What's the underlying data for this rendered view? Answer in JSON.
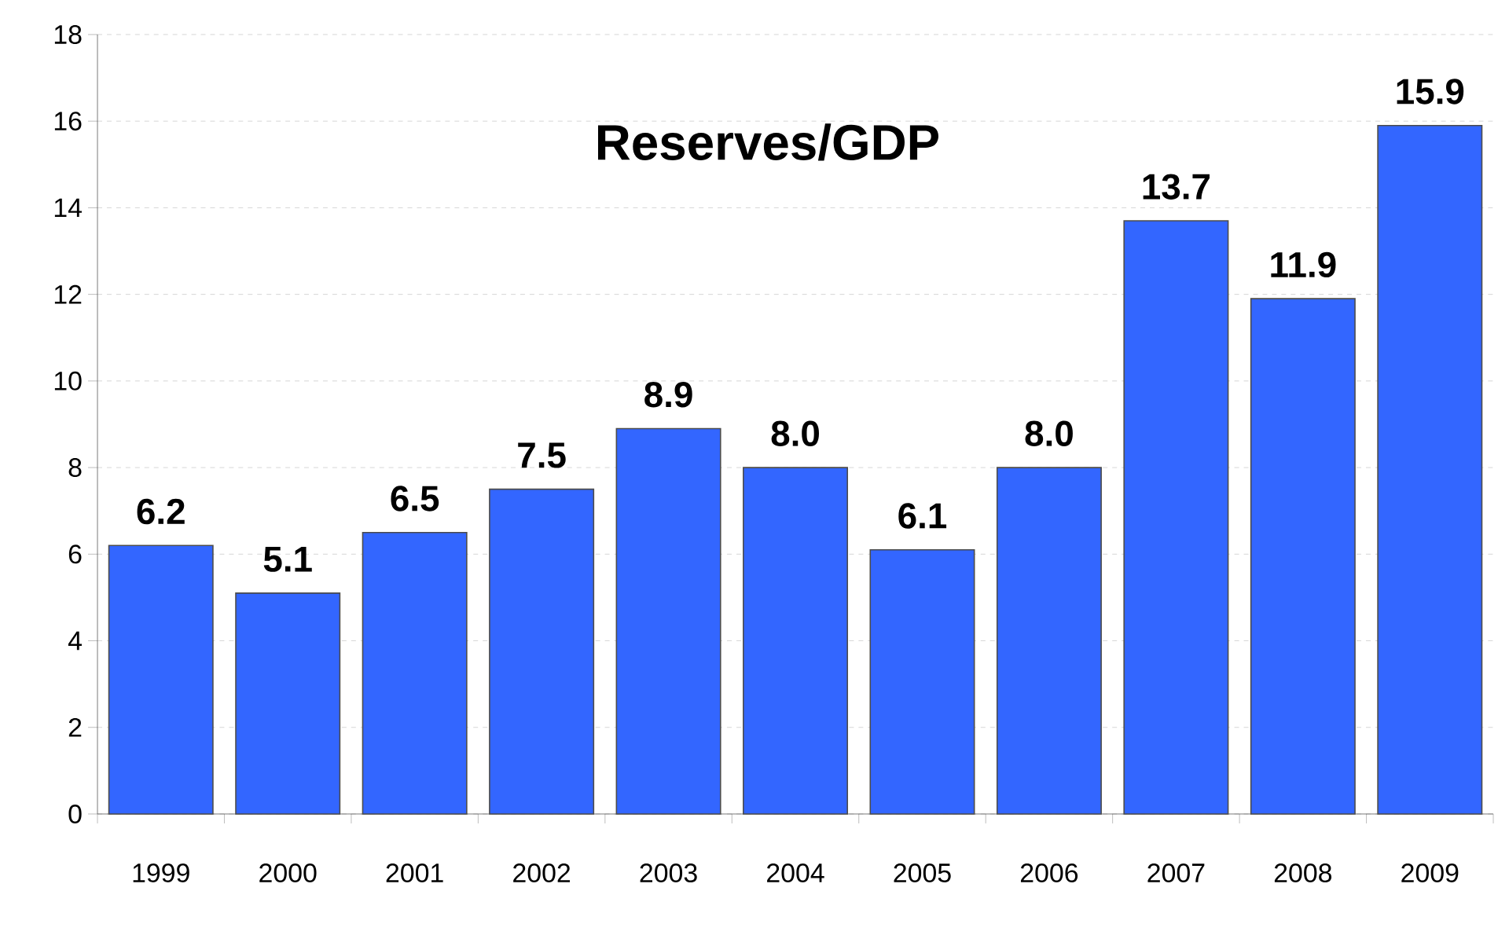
{
  "chart_data": {
    "type": "bar",
    "title": "Reserves/GDP",
    "categories": [
      "1999",
      "2000",
      "2001",
      "2002",
      "2003",
      "2004",
      "2005",
      "2006",
      "2007",
      "2008",
      "2009"
    ],
    "values": [
      6.2,
      5.1,
      6.5,
      7.5,
      8.9,
      8.0,
      6.1,
      8.0,
      13.7,
      11.9,
      15.9
    ],
    "color": "#3366ff",
    "ylim": [
      0,
      18
    ],
    "yticks": [
      0,
      2,
      4,
      6,
      8,
      10,
      12,
      14,
      16,
      18
    ],
    "grid": "y",
    "value_labels": [
      "6.2",
      "5.1",
      "6.5",
      "7.5",
      "8.9",
      "8.0",
      "6.1",
      "8.0",
      "13.7",
      "11.9",
      "15.9"
    ]
  }
}
